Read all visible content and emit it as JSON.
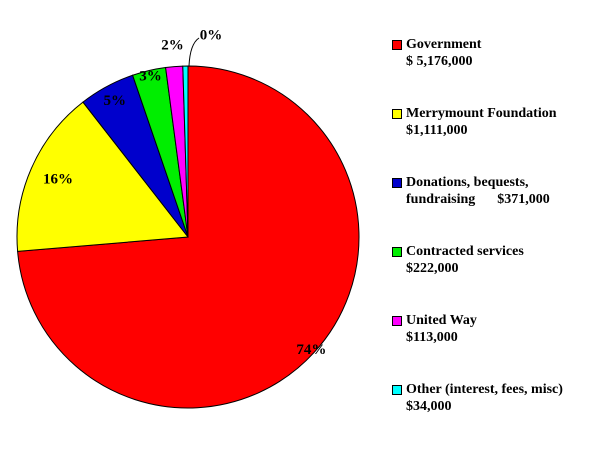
{
  "chart_data": {
    "type": "pie",
    "categories": [
      "Government",
      "Merrymount Foundation",
      "Donations, bequests, fundraising",
      "Contracted services",
      "United Way",
      "Other (interest, fees, misc)"
    ],
    "values": [
      5176000,
      1111000,
      371000,
      222000,
      113000,
      34000
    ],
    "value_labels": [
      "$ 5,176,000",
      "$1,111,000",
      "$371,000",
      "$222,000",
      "$113,000",
      "$34,000"
    ],
    "percent_labels": [
      "74%",
      "16%",
      "5%",
      "3%",
      "2%",
      "0%"
    ],
    "colors": [
      "#ff0000",
      "#ffff00",
      "#0000cc",
      "#00ee00",
      "#ff00ff",
      "#00ffff"
    ]
  }
}
